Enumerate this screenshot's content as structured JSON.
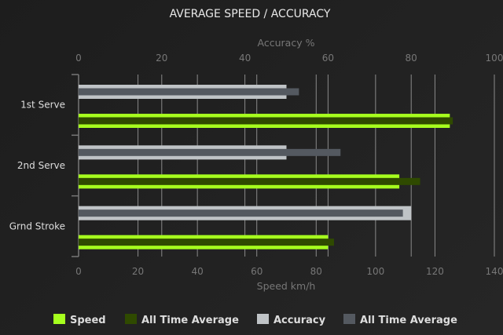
{
  "chart_data": {
    "type": "bar",
    "orientation": "horizontal",
    "title": "AVERAGE SPEED / ACCURACY",
    "categories": [
      "1st Serve",
      "2nd Serve",
      "Grnd Stroke"
    ],
    "top_axis": {
      "label": "Accuracy %",
      "range": [
        0,
        100
      ],
      "ticks": [
        0,
        20,
        40,
        60,
        80,
        100
      ]
    },
    "bottom_axis": {
      "label": "Speed km/h",
      "range": [
        0,
        140
      ],
      "ticks": [
        0,
        20,
        40,
        60,
        80,
        100,
        120,
        140
      ]
    },
    "grid": true,
    "legend_placement": "bottom",
    "series": [
      {
        "name": "Speed",
        "axis": "bottom",
        "color": "#a6ff1e",
        "values": [
          125,
          108,
          84
        ]
      },
      {
        "name": "All Time Average",
        "axis": "bottom",
        "color": "#2f4a00",
        "values": [
          126,
          115,
          86
        ]
      },
      {
        "name": "Accuracy",
        "axis": "top",
        "color": "#bfc3c6",
        "values": [
          50,
          50,
          80
        ]
      },
      {
        "name": "All Time Average",
        "axis": "top",
        "color": "#545960",
        "values": [
          53,
          63,
          78
        ]
      }
    ]
  }
}
